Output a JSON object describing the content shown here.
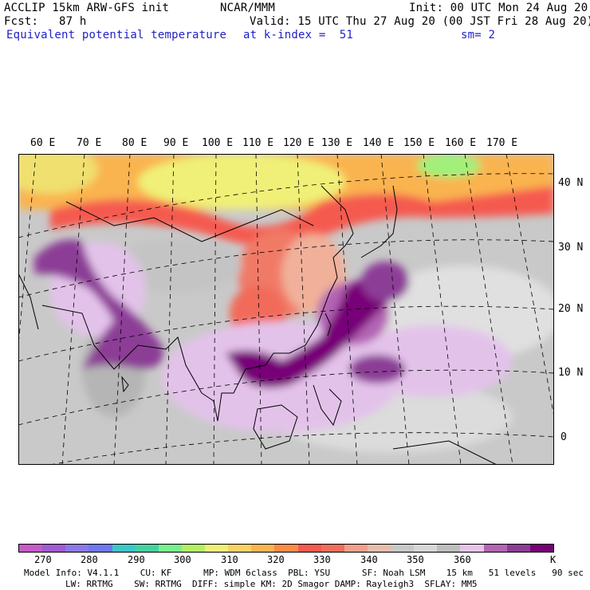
{
  "header": {
    "line1_left": "ACCLIP 15km ARW-GFS init",
    "line1_center": "NCAR/MMM",
    "line1_right": "Init: 00 UTC Mon 24 Aug 20",
    "line2_left": "Fcst:   87 h",
    "line2_right": "Valid: 15 UTC Thu 27 Aug 20 (00 JST Fri 28 Aug 20)",
    "line3_left": "Equivalent potential temperature",
    "line3_center": "at k-index =  51",
    "line3_right": "sm= 2"
  },
  "map": {
    "lon_labels": [
      "60 E",
      "70 E",
      "80 E",
      "90 E",
      "100 E",
      "110 E",
      "120 E",
      "130 E",
      "140 E",
      "150 E",
      "160 E",
      "170 E"
    ],
    "lat_labels": [
      "40 N",
      "30 N",
      "20 N",
      "10 N",
      "0"
    ]
  },
  "colorbar": {
    "colors": [
      "#c85ac8",
      "#a05ad2",
      "#8c78e6",
      "#6e78f0",
      "#3cc8c8",
      "#46d2a0",
      "#78f08c",
      "#b4f064",
      "#f0f078",
      "#fad264",
      "#fab450",
      "#fa8c46",
      "#f55a50",
      "#f06e5a",
      "#f0a08c",
      "#e6beaa",
      "#c8c8c8",
      "#d7d7d7",
      "#bebebe",
      "#e6c3eb",
      "#b464b4",
      "#8c3c96",
      "#780078"
    ],
    "labels": [
      "270",
      "280",
      "290",
      "300",
      "310",
      "320",
      "330",
      "340",
      "350",
      "360",
      "K"
    ],
    "legend_colors_semantic": {
      "low": "#c85ac8",
      "mid": "#f0f078",
      "high": "#f55a50",
      "moist": "#780078"
    }
  },
  "info": {
    "line1": "Model Info: V4.1.1    CU: KF      MP: WDM 6class  PBL: YSU      SF: Noah LSM    15 km   51 levels   90 sec",
    "line2": "LW: RRTMG    SW: RRTMG  DIFF: simple KM: 2D Smagor DAMP: Rayleigh3  SFLAY: MM5"
  }
}
